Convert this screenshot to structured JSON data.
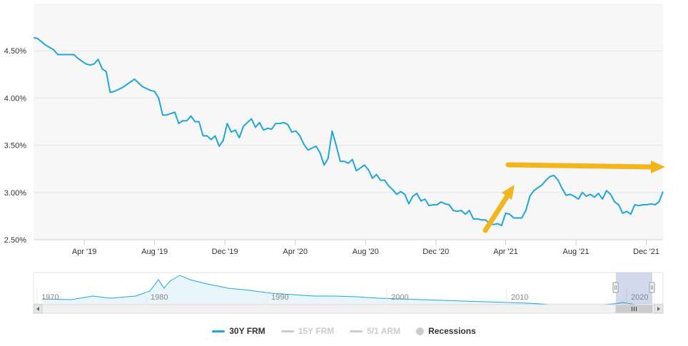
{
  "chart_data": {
    "type": "line",
    "y_ticks": [
      "2.50%",
      "3.00%",
      "3.50%",
      "4.00%",
      "4.50%"
    ],
    "y_tick_values": [
      2.5,
      3.0,
      3.5,
      4.0,
      4.5
    ],
    "ylim": [
      2.5,
      5.0
    ],
    "x_ticks": [
      "Apr '19",
      "Aug '19",
      "Dec '19",
      "Apr '20",
      "Aug '20",
      "Dec '20",
      "Apr '21",
      "Aug '21",
      "Dec '21"
    ],
    "x_tick_dates": [
      "2019-04-01",
      "2019-08-01",
      "2019-12-01",
      "2020-04-01",
      "2020-08-01",
      "2020-12-01",
      "2021-04-01",
      "2021-08-01",
      "2021-12-01"
    ],
    "xlim": [
      "2019-01-03",
      "2021-12-30"
    ],
    "grid": true,
    "legend_position": "bottom",
    "series": [
      {
        "name": "30Y FRM",
        "color": "#1ea6dd",
        "points": [
          [
            "2019-01-03",
            4.64
          ],
          [
            "2019-01-10",
            4.63
          ],
          [
            "2019-01-24",
            4.56
          ],
          [
            "2019-02-07",
            4.51
          ],
          [
            "2019-02-14",
            4.46
          ],
          [
            "2019-02-28",
            4.46
          ],
          [
            "2019-03-14",
            4.46
          ],
          [
            "2019-03-21",
            4.42
          ],
          [
            "2019-04-04",
            4.36
          ],
          [
            "2019-04-11",
            4.35
          ],
          [
            "2019-04-18",
            4.36
          ],
          [
            "2019-04-25",
            4.41
          ],
          [
            "2019-05-02",
            4.31
          ],
          [
            "2019-05-09",
            4.28
          ],
          [
            "2019-05-16",
            4.06
          ],
          [
            "2019-05-23",
            4.07
          ],
          [
            "2019-06-06",
            4.11
          ],
          [
            "2019-06-20",
            4.17
          ],
          [
            "2019-06-27",
            4.2
          ],
          [
            "2019-07-11",
            4.12
          ],
          [
            "2019-07-25",
            4.08
          ],
          [
            "2019-08-01",
            4.07
          ],
          [
            "2019-08-08",
            4.0
          ],
          [
            "2019-08-15",
            3.82
          ],
          [
            "2019-08-22",
            3.82
          ],
          [
            "2019-09-05",
            3.85
          ],
          [
            "2019-09-12",
            3.73
          ],
          [
            "2019-09-19",
            3.76
          ],
          [
            "2019-09-26",
            3.76
          ],
          [
            "2019-10-03",
            3.81
          ],
          [
            "2019-10-10",
            3.75
          ],
          [
            "2019-10-17",
            3.75
          ],
          [
            "2019-10-24",
            3.6
          ],
          [
            "2019-10-31",
            3.6
          ],
          [
            "2019-11-07",
            3.56
          ],
          [
            "2019-11-14",
            3.6
          ],
          [
            "2019-11-21",
            3.49
          ],
          [
            "2019-11-28",
            3.55
          ],
          [
            "2019-12-05",
            3.73
          ],
          [
            "2019-12-12",
            3.64
          ],
          [
            "2019-12-19",
            3.66
          ],
          [
            "2019-12-26",
            3.58
          ],
          [
            "2020-01-02",
            3.7
          ],
          [
            "2020-01-09",
            3.74
          ],
          [
            "2020-01-16",
            3.78
          ],
          [
            "2020-01-23",
            3.69
          ],
          [
            "2020-01-30",
            3.74
          ],
          [
            "2020-02-06",
            3.66
          ],
          [
            "2020-02-13",
            3.68
          ],
          [
            "2020-02-20",
            3.67
          ],
          [
            "2020-02-27",
            3.73
          ],
          [
            "2020-03-05",
            3.73
          ],
          [
            "2020-03-12",
            3.74
          ],
          [
            "2020-03-19",
            3.72
          ],
          [
            "2020-03-26",
            3.64
          ],
          [
            "2020-04-02",
            3.65
          ],
          [
            "2020-04-09",
            3.6
          ],
          [
            "2020-04-16",
            3.51
          ],
          [
            "2020-04-23",
            3.45
          ],
          [
            "2020-04-30",
            3.47
          ],
          [
            "2020-05-07",
            3.49
          ],
          [
            "2020-05-14",
            3.42
          ],
          [
            "2020-05-21",
            3.29
          ],
          [
            "2020-05-28",
            3.36
          ],
          [
            "2020-06-04",
            3.65
          ],
          [
            "2020-06-11",
            3.5
          ],
          [
            "2020-06-18",
            3.33
          ],
          [
            "2020-06-25",
            3.33
          ],
          [
            "2020-07-02",
            3.31
          ],
          [
            "2020-07-09",
            3.35
          ],
          [
            "2020-07-16",
            3.23
          ],
          [
            "2020-07-23",
            3.26
          ],
          [
            "2020-07-30",
            3.29
          ],
          [
            "2020-08-06",
            3.24
          ],
          [
            "2020-08-13",
            3.15
          ],
          [
            "2020-08-20",
            3.19
          ],
          [
            "2020-08-27",
            3.13
          ],
          [
            "2020-09-03",
            3.13
          ],
          [
            "2020-09-10",
            3.07
          ],
          [
            "2020-09-17",
            3.03
          ],
          [
            "2020-09-24",
            2.98
          ],
          [
            "2020-10-01",
            3.01
          ],
          [
            "2020-10-08",
            2.98
          ],
          [
            "2020-10-15",
            2.88
          ],
          [
            "2020-10-22",
            2.96
          ],
          [
            "2020-10-29",
            2.99
          ],
          [
            "2020-11-05",
            2.91
          ],
          [
            "2020-11-12",
            2.93
          ],
          [
            "2020-11-19",
            2.86
          ],
          [
            "2020-11-26",
            2.87
          ],
          [
            "2020-12-03",
            2.87
          ],
          [
            "2020-12-10",
            2.9
          ],
          [
            "2020-12-17",
            2.88
          ],
          [
            "2020-12-24",
            2.87
          ],
          [
            "2020-12-31",
            2.81
          ],
          [
            "2021-01-07",
            2.8
          ],
          [
            "2021-01-14",
            2.81
          ],
          [
            "2021-01-21",
            2.77
          ],
          [
            "2021-01-28",
            2.81
          ],
          [
            "2021-02-04",
            2.72
          ],
          [
            "2021-02-11",
            2.72
          ],
          [
            "2021-02-18",
            2.71
          ],
          [
            "2021-02-25",
            2.71
          ],
          [
            "2021-03-04",
            2.67
          ],
          [
            "2021-03-11",
            2.66
          ],
          [
            "2021-03-18",
            2.67
          ],
          [
            "2021-03-25",
            2.65
          ],
          [
            "2021-04-01",
            2.78
          ],
          [
            "2021-04-08",
            2.77
          ],
          [
            "2021-04-15",
            2.73
          ],
          [
            "2021-04-22",
            2.73
          ],
          [
            "2021-04-29",
            2.73
          ],
          [
            "2021-05-06",
            2.81
          ],
          [
            "2021-05-13",
            2.96
          ],
          [
            "2021-05-20",
            3.02
          ],
          [
            "2021-05-27",
            3.05
          ],
          [
            "2021-06-03",
            3.08
          ],
          [
            "2021-06-10",
            3.13
          ],
          [
            "2021-06-17",
            3.17
          ],
          [
            "2021-06-24",
            3.18
          ],
          [
            "2021-07-01",
            3.13
          ],
          [
            "2021-07-08",
            3.04
          ],
          [
            "2021-07-15",
            2.97
          ],
          [
            "2021-07-22",
            2.98
          ],
          [
            "2021-07-29",
            2.96
          ],
          [
            "2021-08-05",
            2.93
          ],
          [
            "2021-08-12",
            3.0
          ],
          [
            "2021-08-19",
            2.96
          ],
          [
            "2021-08-26",
            2.98
          ],
          [
            "2021-09-02",
            2.95
          ],
          [
            "2021-09-09",
            2.99
          ],
          [
            "2021-09-16",
            2.93
          ],
          [
            "2021-09-23",
            3.02
          ],
          [
            "2021-09-30",
            2.98
          ],
          [
            "2021-10-07",
            2.9
          ],
          [
            "2021-10-14",
            2.87
          ],
          [
            "2021-10-21",
            2.78
          ],
          [
            "2021-10-28",
            2.8
          ],
          [
            "2021-11-04",
            2.77
          ],
          [
            "2021-11-11",
            2.87
          ],
          [
            "2021-11-18",
            2.86
          ],
          [
            "2021-11-25",
            2.87
          ],
          [
            "2021-12-02",
            2.87
          ],
          [
            "2021-12-09",
            2.88
          ],
          [
            "2021-12-16",
            2.87
          ],
          [
            "2021-12-23",
            2.9
          ],
          [
            "2021-12-30",
            3.01
          ]
        ]
      }
    ]
  },
  "navigator": {
    "x_labels": [
      "1970",
      "1980",
      "1990",
      "2000",
      "2010",
      "2020"
    ]
  },
  "legend": {
    "items": [
      {
        "label": "30Y FRM",
        "color": "#1ea6dd",
        "active": true,
        "kind": "line"
      },
      {
        "label": "15Y FRM",
        "color": "#cccccc",
        "active": false,
        "kind": "line"
      },
      {
        "label": "5/1 ARM",
        "color": "#cccccc",
        "active": false,
        "kind": "line"
      },
      {
        "label": "Recessions",
        "color": "#cccccc",
        "active": true,
        "kind": "dot"
      }
    ]
  },
  "annotations": {
    "arrow_color": "#f2b51b"
  }
}
